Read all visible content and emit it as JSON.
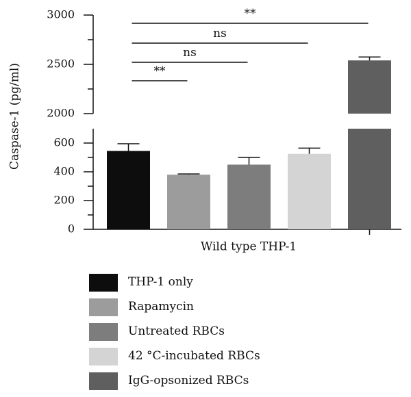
{
  "chart_data": {
    "type": "bar",
    "ylabel": "Caspase-1 (pg/ml)",
    "xlabel": "Wild type THP-1",
    "categories": [
      "THP-1 only",
      "Rapamycin",
      "Untreated RBCs",
      "42 °C-incubated RBCs",
      "IgG-opsonized RBCs"
    ],
    "values": [
      545,
      380,
      450,
      525,
      2540
    ],
    "errors": [
      50,
      5,
      50,
      40,
      35
    ],
    "colors": [
      "#0d0d0d",
      "#9c9c9c",
      "#7d7d7d",
      "#d4d4d4",
      "#5f5f5f"
    ],
    "y_axis_break": {
      "lower_range": [
        0,
        700
      ],
      "upper_range": [
        2000,
        3000
      ]
    },
    "lower_ticks": [
      "0",
      "200",
      "400",
      "600"
    ],
    "upper_ticks": [
      "2000",
      "2500",
      "3000"
    ],
    "significance": [
      {
        "from": 0,
        "to": 1,
        "label": "**"
      },
      {
        "from": 0,
        "to": 2,
        "label": "ns"
      },
      {
        "from": 0,
        "to": 3,
        "label": "ns"
      },
      {
        "from": 0,
        "to": 4,
        "label": "**"
      }
    ],
    "legend_position": "bottom"
  }
}
